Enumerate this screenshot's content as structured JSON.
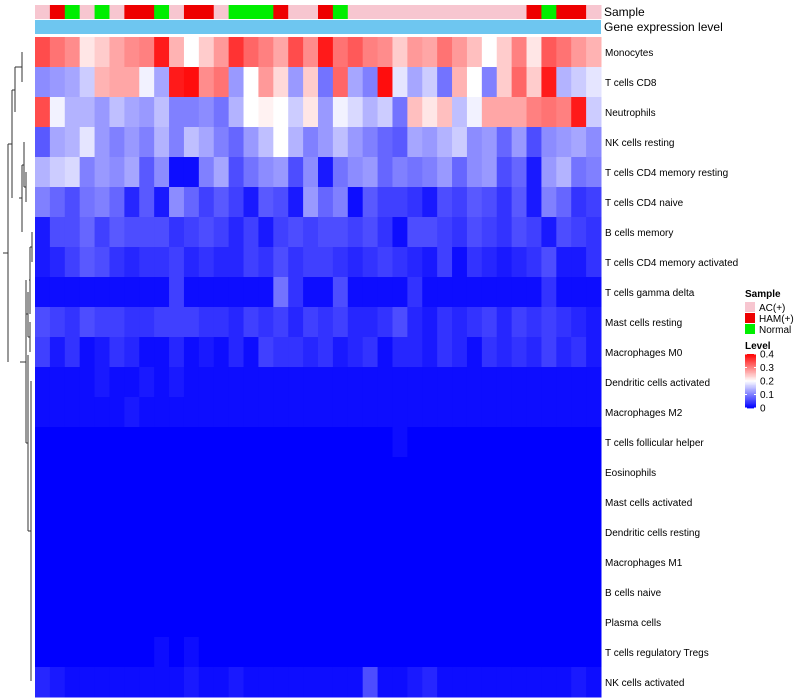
{
  "chart_data": {
    "type": "heatmap",
    "title": "",
    "annotation_tracks": [
      "Sample",
      "Gene expression level"
    ],
    "sample_groups": [
      "AC(+)",
      "HAM(+)",
      "Normal",
      "AC(+)",
      "Normal",
      "AC(+)",
      "HAM(+)",
      "HAM(+)",
      "Normal",
      "AC(+)",
      "HAM(+)",
      "HAM(+)",
      "AC(+)",
      "Normal",
      "Normal",
      "Normal",
      "HAM(+)",
      "AC(+)",
      "AC(+)",
      "HAM(+)",
      "Normal",
      "AC(+)",
      "AC(+)",
      "AC(+)",
      "AC(+)",
      "AC(+)",
      "AC(+)",
      "AC(+)",
      "AC(+)",
      "AC(+)",
      "AC(+)",
      "AC(+)",
      "AC(+)",
      "HAM(+)",
      "Normal",
      "HAM(+)",
      "HAM(+)",
      "AC(+)"
    ],
    "sample_group_colors": {
      "AC(+)": "#f7c6d0",
      "HAM(+)": "#ee0000",
      "Normal": "#00ee00"
    },
    "expression_track_color": "#6ec6f0",
    "rows": [
      "Monocytes",
      "T cells CD8",
      "Neutrophils",
      "NK cells resting",
      "T cells CD4 memory resting",
      "T cells CD4 naive",
      "B cells memory",
      "T cells CD4 memory activated",
      "T cells gamma delta",
      "Mast cells resting",
      "Macrophages M0",
      "Dendritic cells activated",
      "Macrophages M2",
      "T cells follicular helper",
      "Eosinophils",
      "Mast cells activated",
      "Dendritic cells resting",
      "Macrophages M1",
      "B cells naive",
      "Plasma cells",
      "T cells regulatory  Tregs",
      "NK cells activated"
    ],
    "values": [
      [
        0.34,
        0.31,
        0.29,
        0.22,
        0.24,
        0.27,
        0.29,
        0.3,
        0.38,
        0.26,
        0.2,
        0.24,
        0.28,
        0.36,
        0.32,
        0.3,
        0.27,
        0.34,
        0.29,
        0.38,
        0.31,
        0.33,
        0.3,
        0.29,
        0.24,
        0.28,
        0.27,
        0.31,
        0.28,
        0.25,
        0.2,
        0.24,
        0.3,
        0.22,
        0.33,
        0.31,
        0.28,
        0.26
      ],
      [
        0.11,
        0.12,
        0.13,
        0.16,
        0.26,
        0.27,
        0.27,
        0.19,
        0.13,
        0.38,
        0.39,
        0.29,
        0.31,
        0.12,
        0.2,
        0.28,
        0.23,
        0.12,
        0.24,
        0.09,
        0.32,
        0.13,
        0.1,
        0.39,
        0.18,
        0.13,
        0.16,
        0.09,
        0.26,
        0.2,
        0.1,
        0.24,
        0.32,
        0.24,
        0.38,
        0.14,
        0.16,
        0.18
      ],
      [
        0.34,
        0.19,
        0.14,
        0.14,
        0.12,
        0.15,
        0.13,
        0.12,
        0.15,
        0.1,
        0.1,
        0.11,
        0.09,
        0.14,
        0.2,
        0.21,
        0.2,
        0.16,
        0.22,
        0.12,
        0.19,
        0.17,
        0.14,
        0.16,
        0.09,
        0.25,
        0.22,
        0.25,
        0.15,
        0.19,
        0.27,
        0.27,
        0.27,
        0.3,
        0.31,
        0.3,
        0.38,
        0.16
      ],
      [
        0.07,
        0.13,
        0.14,
        0.18,
        0.12,
        0.1,
        0.12,
        0.1,
        0.14,
        0.1,
        0.15,
        0.13,
        0.1,
        0.08,
        0.12,
        0.15,
        0.2,
        0.14,
        0.1,
        0.12,
        0.15,
        0.12,
        0.1,
        0.08,
        0.07,
        0.13,
        0.12,
        0.14,
        0.16,
        0.11,
        0.12,
        0.08,
        0.12,
        0.06,
        0.11,
        0.12,
        0.13,
        0.11
      ],
      [
        0.14,
        0.16,
        0.17,
        0.1,
        0.12,
        0.11,
        0.13,
        0.07,
        0.11,
        0.01,
        0.01,
        0.1,
        0.13,
        0.06,
        0.09,
        0.11,
        0.12,
        0.06,
        0.11,
        0.02,
        0.09,
        0.11,
        0.12,
        0.08,
        0.1,
        0.09,
        0.1,
        0.12,
        0.08,
        0.11,
        0.12,
        0.06,
        0.08,
        0.02,
        0.12,
        0.14,
        0.09,
        0.1
      ],
      [
        0.1,
        0.08,
        0.06,
        0.09,
        0.1,
        0.08,
        0.03,
        0.07,
        0.02,
        0.11,
        0.08,
        0.05,
        0.07,
        0.05,
        0.02,
        0.07,
        0.06,
        0.02,
        0.12,
        0.08,
        0.1,
        0.01,
        0.07,
        0.05,
        0.05,
        0.04,
        0.02,
        0.06,
        0.05,
        0.07,
        0.06,
        0.04,
        0.07,
        0.02,
        0.1,
        0.08,
        0.04,
        0.05
      ],
      [
        0.02,
        0.06,
        0.06,
        0.08,
        0.05,
        0.07,
        0.06,
        0.06,
        0.06,
        0.04,
        0.05,
        0.06,
        0.05,
        0.03,
        0.05,
        0.02,
        0.05,
        0.06,
        0.05,
        0.06,
        0.06,
        0.05,
        0.06,
        0.04,
        0.01,
        0.06,
        0.06,
        0.05,
        0.04,
        0.06,
        0.05,
        0.04,
        0.06,
        0.05,
        0.02,
        0.06,
        0.05,
        0.04
      ],
      [
        0.02,
        0.03,
        0.05,
        0.07,
        0.06,
        0.04,
        0.03,
        0.04,
        0.04,
        0.05,
        0.03,
        0.04,
        0.03,
        0.03,
        0.05,
        0.04,
        0.06,
        0.04,
        0.05,
        0.05,
        0.04,
        0.03,
        0.04,
        0.05,
        0.04,
        0.03,
        0.02,
        0.05,
        0.01,
        0.04,
        0.03,
        0.02,
        0.03,
        0.04,
        0.06,
        0.02,
        0.02,
        0.04
      ],
      [
        0.01,
        0.01,
        0.01,
        0.01,
        0.01,
        0.01,
        0.01,
        0.01,
        0.01,
        0.05,
        0.01,
        0.01,
        0.01,
        0.01,
        0.01,
        0.01,
        0.09,
        0.04,
        0.01,
        0.01,
        0.06,
        0.01,
        0.01,
        0.01,
        0.01,
        0.04,
        0.01,
        0.01,
        0.01,
        0.01,
        0.01,
        0.01,
        0.01,
        0.01,
        0.04,
        0.01,
        0.01,
        0.01
      ],
      [
        0.06,
        0.05,
        0.04,
        0.06,
        0.05,
        0.05,
        0.04,
        0.04,
        0.05,
        0.05,
        0.05,
        0.04,
        0.04,
        0.03,
        0.05,
        0.04,
        0.05,
        0.03,
        0.05,
        0.04,
        0.05,
        0.03,
        0.03,
        0.04,
        0.06,
        0.03,
        0.02,
        0.04,
        0.03,
        0.04,
        0.05,
        0.03,
        0.05,
        0.04,
        0.05,
        0.04,
        0.03,
        0.02
      ],
      [
        0.05,
        0.02,
        0.04,
        0.01,
        0.02,
        0.04,
        0.03,
        0.01,
        0.01,
        0.03,
        0.01,
        0.02,
        0.01,
        0.03,
        0.01,
        0.05,
        0.04,
        0.04,
        0.03,
        0.04,
        0.02,
        0.03,
        0.04,
        0.01,
        0.03,
        0.03,
        0.02,
        0.04,
        0.03,
        0.01,
        0.04,
        0.03,
        0.04,
        0.03,
        0.05,
        0.03,
        0.04,
        0.02
      ],
      [
        0.01,
        0.01,
        0.01,
        0.01,
        0.02,
        0.01,
        0.01,
        0.02,
        0.01,
        0.02,
        0.01,
        0.01,
        0.01,
        0.01,
        0.01,
        0.01,
        0.01,
        0.01,
        0.01,
        0.01,
        0.01,
        0.01,
        0.01,
        0.01,
        0.01,
        0.01,
        0.01,
        0.01,
        0.01,
        0.01,
        0.01,
        0.01,
        0.01,
        0.01,
        0.01,
        0.01,
        0.01,
        0.01
      ],
      [
        0.01,
        0.01,
        0.01,
        0.01,
        0.01,
        0.01,
        0.02,
        0.01,
        0.01,
        0.01,
        0.01,
        0.01,
        0.01,
        0.01,
        0.01,
        0.01,
        0.01,
        0.01,
        0.01,
        0.01,
        0.01,
        0.01,
        0.01,
        0.01,
        0.01,
        0.01,
        0.01,
        0.01,
        0.01,
        0.01,
        0.01,
        0.01,
        0.01,
        0.01,
        0.01,
        0.01,
        0.01,
        0.01
      ],
      [
        0.0,
        0.0,
        0.0,
        0.0,
        0.0,
        0.0,
        0.0,
        0.0,
        0.0,
        0.0,
        0.0,
        0.0,
        0.0,
        0.0,
        0.0,
        0.0,
        0.0,
        0.0,
        0.0,
        0.0,
        0.0,
        0.0,
        0.0,
        0.0,
        0.01,
        0.0,
        0.0,
        0.0,
        0.0,
        0.0,
        0.0,
        0.0,
        0.0,
        0.0,
        0.0,
        0.0,
        0.0,
        0.0
      ],
      [
        0.0,
        0.0,
        0.0,
        0.0,
        0.0,
        0.0,
        0.0,
        0.0,
        0.0,
        0.0,
        0.0,
        0.0,
        0.0,
        0.0,
        0.0,
        0.0,
        0.0,
        0.0,
        0.0,
        0.0,
        0.0,
        0.0,
        0.0,
        0.0,
        0.0,
        0.0,
        0.0,
        0.0,
        0.0,
        0.0,
        0.0,
        0.0,
        0.0,
        0.0,
        0.0,
        0.0,
        0.0,
        0.0
      ],
      [
        0.0,
        0.0,
        0.0,
        0.0,
        0.0,
        0.0,
        0.0,
        0.0,
        0.0,
        0.0,
        0.0,
        0.0,
        0.0,
        0.0,
        0.0,
        0.0,
        0.0,
        0.0,
        0.0,
        0.0,
        0.0,
        0.0,
        0.0,
        0.0,
        0.0,
        0.0,
        0.0,
        0.0,
        0.0,
        0.0,
        0.0,
        0.0,
        0.0,
        0.0,
        0.0,
        0.0,
        0.0,
        0.0
      ],
      [
        0.0,
        0.0,
        0.0,
        0.0,
        0.0,
        0.0,
        0.0,
        0.0,
        0.0,
        0.0,
        0.0,
        0.0,
        0.0,
        0.0,
        0.0,
        0.0,
        0.0,
        0.0,
        0.0,
        0.0,
        0.0,
        0.0,
        0.0,
        0.0,
        0.0,
        0.0,
        0.0,
        0.0,
        0.0,
        0.0,
        0.0,
        0.0,
        0.0,
        0.0,
        0.0,
        0.0,
        0.0,
        0.0
      ],
      [
        0.0,
        0.0,
        0.0,
        0.0,
        0.0,
        0.0,
        0.0,
        0.0,
        0.0,
        0.0,
        0.0,
        0.0,
        0.0,
        0.0,
        0.0,
        0.0,
        0.0,
        0.0,
        0.0,
        0.0,
        0.0,
        0.0,
        0.0,
        0.0,
        0.0,
        0.0,
        0.0,
        0.0,
        0.0,
        0.0,
        0.0,
        0.0,
        0.0,
        0.0,
        0.0,
        0.0,
        0.0,
        0.0
      ],
      [
        0.0,
        0.0,
        0.0,
        0.0,
        0.0,
        0.0,
        0.0,
        0.0,
        0.0,
        0.0,
        0.0,
        0.0,
        0.0,
        0.0,
        0.0,
        0.0,
        0.0,
        0.0,
        0.0,
        0.0,
        0.0,
        0.0,
        0.0,
        0.0,
        0.0,
        0.0,
        0.0,
        0.0,
        0.0,
        0.0,
        0.0,
        0.0,
        0.0,
        0.0,
        0.0,
        0.0,
        0.0,
        0.0
      ],
      [
        0.0,
        0.0,
        0.0,
        0.0,
        0.0,
        0.0,
        0.0,
        0.0,
        0.0,
        0.0,
        0.0,
        0.0,
        0.0,
        0.0,
        0.0,
        0.0,
        0.0,
        0.0,
        0.0,
        0.0,
        0.0,
        0.0,
        0.0,
        0.0,
        0.0,
        0.0,
        0.0,
        0.0,
        0.0,
        0.0,
        0.0,
        0.0,
        0.0,
        0.0,
        0.0,
        0.0,
        0.0,
        0.0
      ],
      [
        0.0,
        0.0,
        0.0,
        0.0,
        0.0,
        0.0,
        0.0,
        0.0,
        0.01,
        0.0,
        0.01,
        0.0,
        0.0,
        0.0,
        0.0,
        0.0,
        0.0,
        0.0,
        0.0,
        0.0,
        0.0,
        0.0,
        0.0,
        0.0,
        0.0,
        0.0,
        0.0,
        0.0,
        0.0,
        0.0,
        0.0,
        0.0,
        0.0,
        0.0,
        0.0,
        0.0,
        0.0,
        0.0
      ],
      [
        0.03,
        0.02,
        0.01,
        0.01,
        0.01,
        0.01,
        0.01,
        0.01,
        0.01,
        0.01,
        0.02,
        0.01,
        0.01,
        0.02,
        0.01,
        0.01,
        0.01,
        0.01,
        0.01,
        0.01,
        0.01,
        0.01,
        0.06,
        0.01,
        0.01,
        0.02,
        0.03,
        0.01,
        0.01,
        0.01,
        0.01,
        0.01,
        0.01,
        0.01,
        0.01,
        0.01,
        0.02,
        0.01
      ]
    ],
    "color_scale": {
      "min": 0,
      "mid": 0.2,
      "max": 0.4,
      "low_color": "#0000ff",
      "mid_color": "#ffffff",
      "high_color": "#ff0000"
    },
    "legends": {
      "sample": {
        "title": "Sample",
        "entries": [
          "AC(+)",
          "HAM(+)",
          "Normal"
        ]
      },
      "level": {
        "title": "Level",
        "ticks": [
          "0.4",
          "0.3",
          "0.2",
          "0.1",
          "0"
        ],
        "tick_values": [
          0.4,
          0.3,
          0.2,
          0.1,
          0
        ]
      }
    },
    "row_dendrogram": true,
    "legend_position": "right"
  }
}
